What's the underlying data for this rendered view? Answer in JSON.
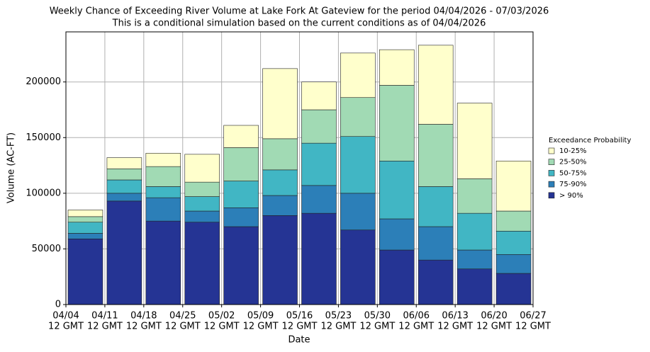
{
  "chart_data": {
    "type": "stacked_bar",
    "title": "Weekly Chance of Exceeding River Volume at Lake Fork At Gateview for the period 04/04/2026 - 07/03/2026",
    "subtitle": "This is a conditional simulation based on the current conditions as of 04/04/2026",
    "xlabel": "Date",
    "ylabel": "Volume (AC-FT)",
    "xticks": [
      {
        "date": "04/04",
        "time": "12 GMT"
      },
      {
        "date": "04/11",
        "time": "12 GMT"
      },
      {
        "date": "04/18",
        "time": "12 GMT"
      },
      {
        "date": "04/25",
        "time": "12 GMT"
      },
      {
        "date": "05/02",
        "time": "12 GMT"
      },
      {
        "date": "05/09",
        "time": "12 GMT"
      },
      {
        "date": "05/16",
        "time": "12 GMT"
      },
      {
        "date": "05/23",
        "time": "12 GMT"
      },
      {
        "date": "05/30",
        "time": "12 GMT"
      },
      {
        "date": "06/06",
        "time": "12 GMT"
      },
      {
        "date": "06/13",
        "time": "12 GMT"
      },
      {
        "date": "06/20",
        "time": "12 GMT"
      },
      {
        "date": "06/27",
        "time": "12 GMT"
      }
    ],
    "ylim": [
      0,
      245000
    ],
    "yticks": [
      0,
      50000,
      100000,
      150000,
      200000
    ],
    "grid": true,
    "legend_title": "Exceedance Probability",
    "legend": "right",
    "series": [
      {
        "name": "> 90%",
        "color": "#253494",
        "values": [
          59000,
          93000,
          75000,
          74000,
          70000,
          80000,
          82000,
          67000,
          49000,
          40000,
          32000,
          28000
        ]
      },
      {
        "name": "75-90%",
        "color": "#2c7fb8",
        "values": [
          5000,
          7000,
          21000,
          10000,
          17000,
          18000,
          25000,
          33000,
          28000,
          30000,
          17000,
          17000
        ]
      },
      {
        "name": "50-75%",
        "color": "#41b6c4",
        "values": [
          10000,
          12000,
          10000,
          13000,
          24000,
          23000,
          38000,
          51000,
          52000,
          36000,
          33000,
          21000
        ]
      },
      {
        "name": "25-50%",
        "color": "#a1dab4",
        "values": [
          5000,
          10000,
          18000,
          13000,
          30000,
          28000,
          30000,
          35000,
          68000,
          56000,
          31000,
          18000
        ]
      },
      {
        "name": "10-25%",
        "color": "#ffffcc",
        "values": [
          6000,
          10000,
          12000,
          25000,
          20000,
          63000,
          25000,
          40000,
          32000,
          71000,
          68000,
          45000
        ]
      }
    ]
  }
}
